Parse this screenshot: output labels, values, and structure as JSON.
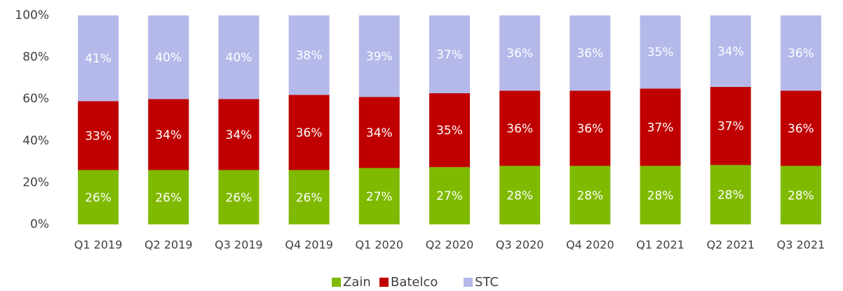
{
  "chart_data": {
    "type": "stacked_bar",
    "categories": [
      "Q1 2019",
      "Q2 2019",
      "Q3 2019",
      "Q4 2019",
      "Q1 2020",
      "Q2 2020",
      "Q3 2020",
      "Q4 2020",
      "Q1 2021",
      "Q2 2021",
      "Q3 2021"
    ],
    "series": [
      {
        "name": "Zain",
        "color": "#7fba00",
        "values": [
          26,
          26,
          26,
          26,
          27,
          27.4,
          28,
          28,
          28,
          28.4,
          28
        ],
        "value_labels": [
          "26%",
          "26%",
          "26%",
          "26%",
          "27%",
          "27%",
          "28%",
          "28%",
          "28%",
          "28%",
          "28%"
        ]
      },
      {
        "name": "Batelco",
        "color": "#c00000",
        "values": [
          33,
          34,
          34,
          36,
          34,
          35.4,
          36,
          36,
          37,
          37.4,
          36
        ],
        "value_labels": [
          "33%",
          "34%",
          "34%",
          "36%",
          "34%",
          "35%",
          "36%",
          "36%",
          "37%",
          "37%",
          "36%"
        ]
      },
      {
        "name": "STC",
        "color": "#b4b9ea",
        "values": [
          41,
          40,
          40,
          38,
          39,
          37.2,
          36,
          36,
          35,
          34.2,
          36
        ],
        "value_labels": [
          "41%",
          "40%",
          "40%",
          "38%",
          "39%",
          "37%",
          "36%",
          "36%",
          "35%",
          "34%",
          "36%"
        ]
      }
    ],
    "ylim": [
      0,
      100
    ],
    "yticks": [
      {
        "value": 0,
        "label": "0%"
      },
      {
        "value": 20,
        "label": "20%"
      },
      {
        "value": 40,
        "label": "40%"
      },
      {
        "value": 60,
        "label": "60%"
      },
      {
        "value": 80,
        "label": "80%"
      },
      {
        "value": 100,
        "label": "100%"
      }
    ],
    "legend": "bottom"
  }
}
